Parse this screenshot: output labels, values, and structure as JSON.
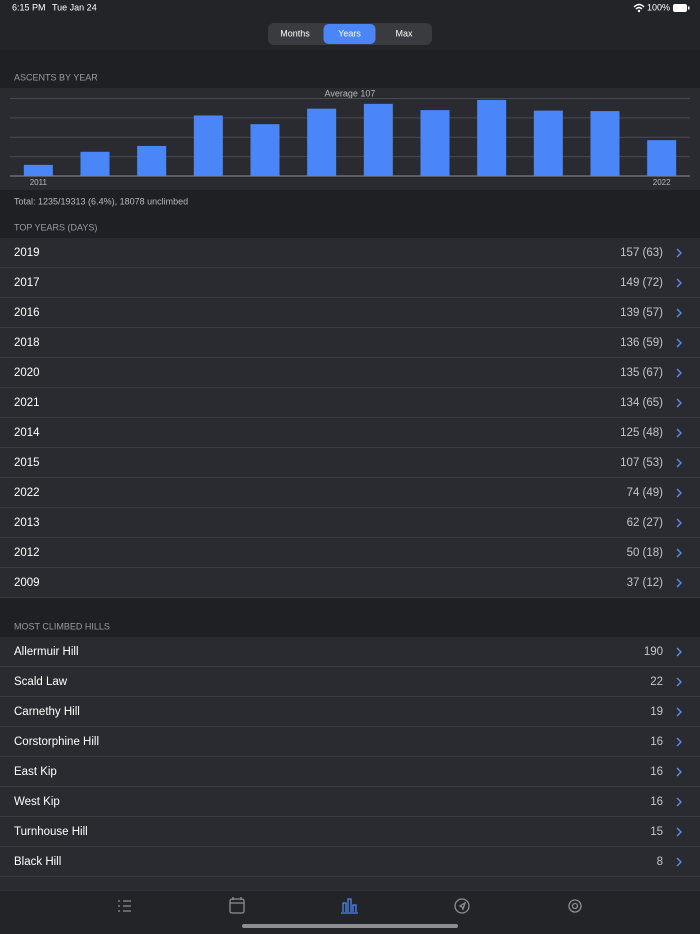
{
  "status_bar": {
    "time": "6:15 PM",
    "date": "Tue Jan 24",
    "battery": "100%"
  },
  "segmented_control": {
    "options": [
      "Months",
      "Years",
      "Max"
    ],
    "selected": 1
  },
  "chart_section": {
    "header": "ASCENTS BY YEAR",
    "summary": "Total: 1235/19313 (6.4%), 18078 unclimbed"
  },
  "chart_data": {
    "type": "bar",
    "annotation": "Average 107",
    "categories": [
      "2011",
      null,
      null,
      null,
      null,
      null,
      null,
      null,
      null,
      null,
      null,
      "2022"
    ],
    "values": [
      23,
      50,
      62,
      125,
      107,
      139,
      149,
      136,
      157,
      135,
      134,
      74
    ],
    "color": "#4a86f7",
    "ylim": [
      0,
      160
    ],
    "yticks": [
      0,
      40,
      80,
      120,
      160
    ],
    "grid": true
  },
  "top_years": {
    "header": "TOP YEARS (DAYS)",
    "rows": [
      {
        "label": "2019",
        "value": "157 (63)"
      },
      {
        "label": "2017",
        "value": "149 (72)"
      },
      {
        "label": "2016",
        "value": "139 (57)"
      },
      {
        "label": "2018",
        "value": "136 (59)"
      },
      {
        "label": "2020",
        "value": "135 (67)"
      },
      {
        "label": "2021",
        "value": "134 (65)"
      },
      {
        "label": "2014",
        "value": "125 (48)"
      },
      {
        "label": "2015",
        "value": "107 (53)"
      },
      {
        "label": "2022",
        "value": "74 (49)"
      },
      {
        "label": "2013",
        "value": "62 (27)"
      },
      {
        "label": "2012",
        "value": "50 (18)"
      },
      {
        "label": "2009",
        "value": "37 (12)"
      }
    ]
  },
  "most_climbed": {
    "header": "MOST CLIMBED HILLS",
    "rows": [
      {
        "label": "Allermuir Hill",
        "value": 190
      },
      {
        "label": "Scald Law",
        "value": 22
      },
      {
        "label": "Carnethy Hill",
        "value": 19
      },
      {
        "label": "Corstorphine Hill",
        "value": 16
      },
      {
        "label": "East Kip",
        "value": 16
      },
      {
        "label": "West Kip",
        "value": 16
      },
      {
        "label": "Turnhouse Hill",
        "value": 15
      },
      {
        "label": "Black Hill",
        "value": 8
      }
    ]
  }
}
